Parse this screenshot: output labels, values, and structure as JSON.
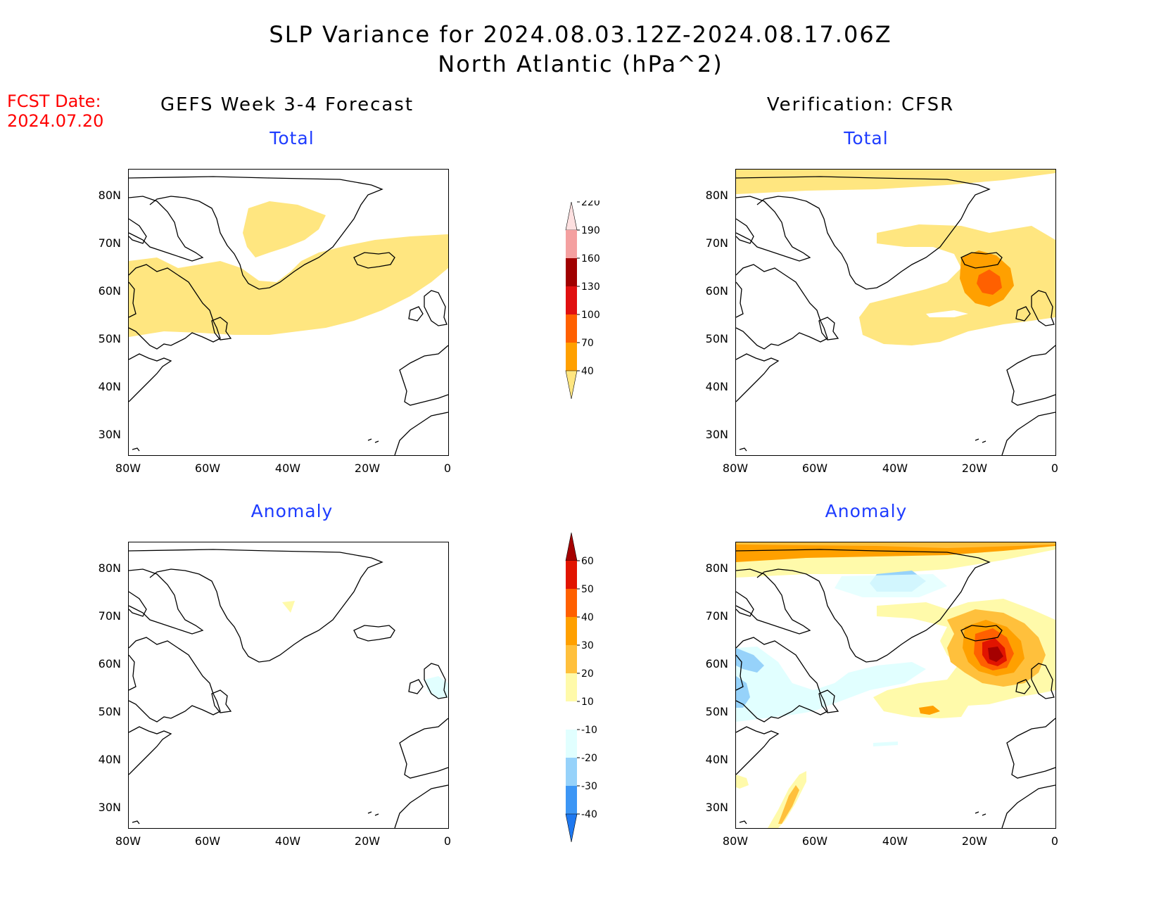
{
  "title_line1": "SLP Variance for 2024.08.03.12Z-2024.08.17.06Z",
  "title_line2": "North Atlantic (hPa^2)",
  "fcst_label": "FCST Date:",
  "fcst_date": "2024.07.20",
  "columns": {
    "left": "GEFS Week 3-4 Forecast",
    "right": "Verification: CFSR"
  },
  "panels": {
    "total_label": "Total",
    "anomaly_label": "Anomaly"
  },
  "axes": {
    "lat_labels": [
      "80N",
      "70N",
      "60N",
      "50N",
      "40N",
      "30N"
    ],
    "lon_labels": [
      "80W",
      "60W",
      "40W",
      "20W",
      "0"
    ]
  },
  "colorbar_total": {
    "labels": [
      "40",
      "70",
      "100",
      "130",
      "160",
      "190",
      "220"
    ],
    "colors": [
      "#ffe680",
      "#ffa000",
      "#ff6000",
      "#e01010",
      "#a00000",
      "#f4a0a0",
      "#fde0e0"
    ]
  },
  "colorbar_anomaly": {
    "labels": [
      "-40",
      "-30",
      "-20",
      "-10",
      "10",
      "20",
      "30",
      "40",
      "50",
      "60"
    ],
    "colors": [
      "#1e78f0",
      "#3c96f5",
      "#96d2fa",
      "#e1ffff",
      "#ffffff",
      "#fffaaa",
      "#ffc03c",
      "#ffa000",
      "#ff6000",
      "#e11400",
      "#a50000"
    ]
  },
  "colors": {
    "title_red": "#ff0000",
    "subtitle_blue": "#1e3cff"
  }
}
